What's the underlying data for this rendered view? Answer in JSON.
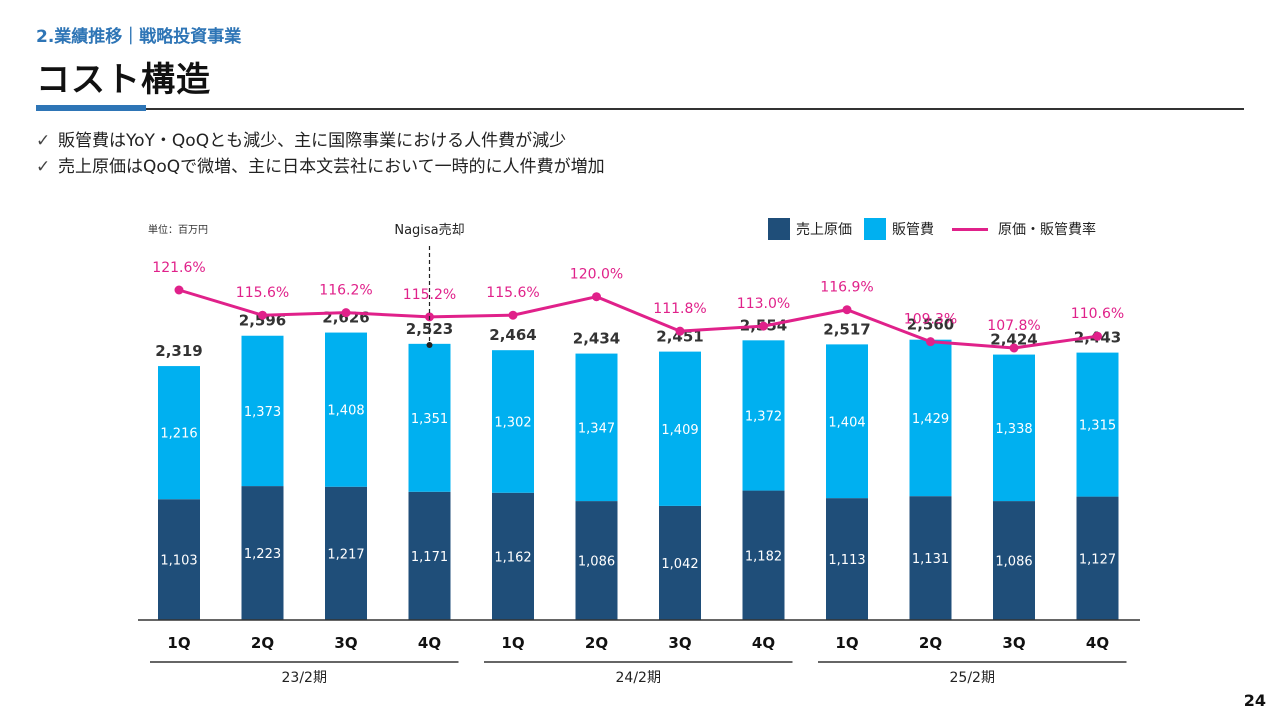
{
  "header": {
    "section": "2.業績推移｜戦略投資事業",
    "title": "コスト構造"
  },
  "bullets": [
    "販管費はYoY・QoQとも減少、主に国際事業における人件費が減少",
    "売上原価はQoQで微増、主に日本文芸社において一時的に人件費が増加"
  ],
  "check_glyph": "✓",
  "page_number": "24",
  "chart_data": {
    "type": "bar",
    "stacked": true,
    "unit_label": "単位：百万円",
    "annotation": "Nagisa売却",
    "annotation_after_category_index": 3,
    "categories": [
      "1Q",
      "2Q",
      "3Q",
      "4Q",
      "1Q",
      "2Q",
      "3Q",
      "4Q",
      "1Q",
      "2Q",
      "3Q",
      "4Q"
    ],
    "groups": [
      {
        "label": "23/2期",
        "start": 0,
        "end": 3
      },
      {
        "label": "24/2期",
        "start": 4,
        "end": 7
      },
      {
        "label": "25/2期",
        "start": 8,
        "end": 11
      }
    ],
    "series": [
      {
        "name": "売上原価",
        "color": "#1f4e79",
        "values": [
          1103,
          1223,
          1217,
          1171,
          1162,
          1086,
          1042,
          1182,
          1113,
          1131,
          1086,
          1127
        ]
      },
      {
        "name": "販管費",
        "color": "#00b0f0",
        "values": [
          1216,
          1373,
          1408,
          1351,
          1302,
          1347,
          1409,
          1372,
          1404,
          1429,
          1338,
          1315
        ]
      }
    ],
    "totals": [
      2319,
      2596,
      2626,
      2523,
      2464,
      2434,
      2451,
      2554,
      2517,
      2560,
      2424,
      2443
    ],
    "totals_labels": [
      "2,319",
      "2,596",
      "2,626",
      "2,523",
      "2,464",
      "2,434",
      "2,451",
      "2,554",
      "2,517",
      "2,560",
      "2,424",
      "2,443"
    ],
    "line": {
      "name": "原価・販管費率",
      "color": "#e0218a",
      "values": [
        121.6,
        115.6,
        116.2,
        115.2,
        115.6,
        120.0,
        111.8,
        113.0,
        116.9,
        109.3,
        107.8,
        110.6
      ],
      "labels": [
        "121.6%",
        "115.6%",
        "116.2%",
        "115.2%",
        "115.6%",
        "120.0%",
        "111.8%",
        "113.0%",
        "116.9%",
        "109.3%",
        "107.8%",
        "110.6%"
      ]
    },
    "bar_value_labels": {
      "cost": [
        "1,103",
        "1,223",
        "1,217",
        "1,171",
        "1,162",
        "1,086",
        "1,042",
        "1,182",
        "1,113",
        "1,131",
        "1,086",
        "1,127"
      ],
      "sga": [
        "1,216",
        "1,373",
        "1,408",
        "1,351",
        "1,302",
        "1,347",
        "1,409",
        "1,372",
        "1,404",
        "1,429",
        "1,338",
        "1,315"
      ]
    },
    "ylim": [
      0,
      2700
    ]
  }
}
